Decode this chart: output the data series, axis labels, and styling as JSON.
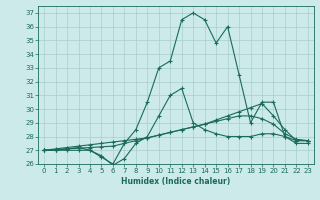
{
  "xlabel": "Humidex (Indice chaleur)",
  "bg_color": "#cceaea",
  "grid_color": "#aacccc",
  "line_color": "#1a6b5a",
  "xlim": [
    -0.5,
    23.5
  ],
  "ylim": [
    26,
    37.5
  ],
  "xticks": [
    0,
    1,
    2,
    3,
    4,
    5,
    6,
    7,
    8,
    9,
    10,
    11,
    12,
    13,
    14,
    15,
    16,
    17,
    18,
    19,
    20,
    21,
    22,
    23
  ],
  "yticks": [
    26,
    27,
    28,
    29,
    30,
    31,
    32,
    33,
    34,
    35,
    36,
    37
  ],
  "lines": [
    {
      "x": [
        0,
        1,
        2,
        3,
        4,
        5,
        6,
        7,
        8,
        9,
        10,
        11,
        12,
        13,
        14,
        15,
        16,
        17,
        18,
        19,
        20,
        21,
        22,
        23
      ],
      "y": [
        27,
        27,
        27.1,
        27.2,
        27,
        26.5,
        26.0,
        27.5,
        28.5,
        30.5,
        33,
        33.5,
        36.5,
        37,
        36.5,
        34.8,
        36.0,
        32.5,
        29.0,
        30.5,
        30.5,
        28.0,
        27.5,
        27.5
      ]
    },
    {
      "x": [
        0,
        1,
        2,
        3,
        4,
        5,
        6,
        7,
        8,
        9,
        10,
        11,
        12,
        13,
        14,
        15,
        16,
        17,
        18,
        19,
        20,
        21,
        22,
        23
      ],
      "y": [
        27,
        27.1,
        27.2,
        27.3,
        27.4,
        27.5,
        27.6,
        27.7,
        27.8,
        27.9,
        28.1,
        28.3,
        28.5,
        28.7,
        28.9,
        29.2,
        29.5,
        29.8,
        30.1,
        30.4,
        29.5,
        28.5,
        27.7,
        27.7
      ]
    },
    {
      "x": [
        0,
        1,
        2,
        3,
        4,
        5,
        6,
        7,
        8,
        9,
        10,
        11,
        12,
        13,
        14,
        15,
        16,
        17,
        18,
        19,
        20,
        21,
        22,
        23
      ],
      "y": [
        27,
        27.05,
        27.1,
        27.15,
        27.2,
        27.25,
        27.3,
        27.5,
        27.7,
        27.9,
        28.1,
        28.3,
        28.5,
        28.7,
        28.9,
        29.1,
        29.3,
        29.5,
        29.5,
        29.3,
        28.9,
        28.2,
        27.8,
        27.7
      ]
    },
    {
      "x": [
        0,
        1,
        2,
        3,
        4,
        5,
        6,
        7,
        8,
        9,
        10,
        11,
        12,
        13,
        14,
        15,
        16,
        17,
        18,
        19,
        20,
        21,
        22,
        23
      ],
      "y": [
        27,
        27.0,
        27.0,
        27.0,
        27.0,
        26.6,
        25.9,
        26.4,
        27.5,
        28.0,
        29.5,
        31.0,
        31.5,
        29.0,
        28.5,
        28.2,
        28.0,
        28.0,
        28.0,
        28.2,
        28.2,
        28.0,
        27.7,
        27.7
      ]
    }
  ]
}
